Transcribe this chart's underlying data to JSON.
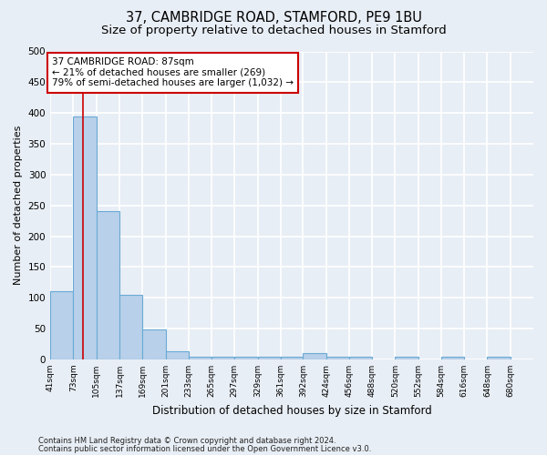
{
  "title": "37, CAMBRIDGE ROAD, STAMFORD, PE9 1BU",
  "subtitle": "Size of property relative to detached houses in Stamford",
  "xlabel": "Distribution of detached houses by size in Stamford",
  "ylabel": "Number of detached properties",
  "footer_line1": "Contains HM Land Registry data © Crown copyright and database right 2024.",
  "footer_line2": "Contains public sector information licensed under the Open Government Licence v3.0.",
  "bar_labels": [
    "41sqm",
    "73sqm",
    "105sqm",
    "137sqm",
    "169sqm",
    "201sqm",
    "233sqm",
    "265sqm",
    "297sqm",
    "329sqm",
    "361sqm",
    "392sqm",
    "424sqm",
    "456sqm",
    "488sqm",
    "520sqm",
    "552sqm",
    "584sqm",
    "616sqm",
    "648sqm",
    "680sqm"
  ],
  "bar_left_edges": [
    41,
    73,
    105,
    137,
    169,
    201,
    233,
    265,
    297,
    329,
    361,
    392,
    424,
    456,
    488,
    520,
    552,
    584,
    616,
    648,
    680
  ],
  "bar_values": [
    110,
    395,
    240,
    105,
    48,
    13,
    5,
    5,
    5,
    5,
    5,
    10,
    5,
    5,
    0,
    5,
    0,
    5,
    0,
    5,
    0
  ],
  "bar_color": "#b8d0ea",
  "bar_edge_color": "#6aaad4",
  "annotation_text": "37 CAMBRIDGE ROAD: 87sqm\n← 21% of detached houses are smaller (269)\n79% of semi-detached houses are larger (1,032) →",
  "annotation_box_color": "white",
  "annotation_box_edge_color": "#cc0000",
  "vline_x": 87,
  "vline_color": "#cc0000",
  "ylim": [
    0,
    500
  ],
  "yticks": [
    0,
    50,
    100,
    150,
    200,
    250,
    300,
    350,
    400,
    450,
    500
  ],
  "background_color": "#e8eef5",
  "grid_color": "white",
  "title_fontsize": 10.5,
  "subtitle_fontsize": 9.5,
  "xlabel_fontsize": 8.5,
  "ylabel_fontsize": 8,
  "annotation_fontsize": 7.5,
  "bin_width": 32
}
